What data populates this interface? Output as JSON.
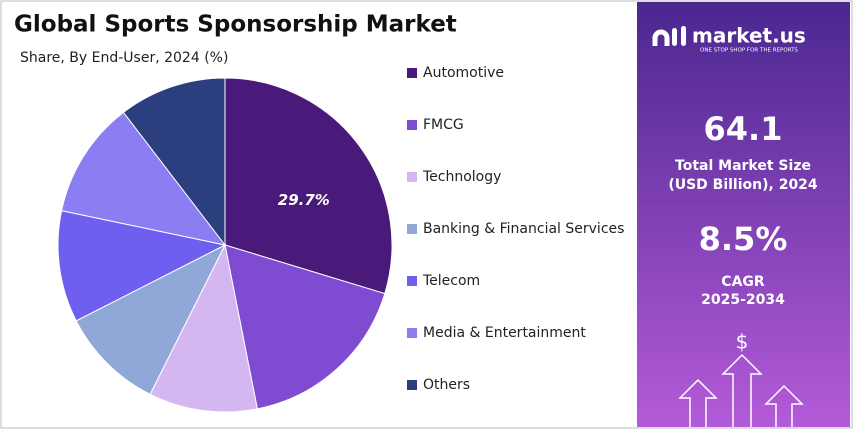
{
  "chart_data": {
    "type": "pie",
    "title": "Global Sports Sponsorship Market",
    "subtitle": "Share, By End-User, 2024 (%)",
    "categories": [
      "Automotive",
      "FMCG",
      "Technology",
      "Banking & Financial Services",
      "Telecom",
      "Media & Entertainment",
      "Others"
    ],
    "values": [
      29.7,
      17.2,
      10.5,
      10.1,
      10.8,
      11.3,
      10.4
    ],
    "value_labels": [
      "29.7%",
      null,
      null,
      null,
      null,
      null,
      null
    ],
    "colors": [
      "#4a1a7a",
      "#7e4bd1",
      "#d4b6f0",
      "#8fa8d8",
      "#6f5ff0",
      "#8a7ef2",
      "#2b3f7e"
    ],
    "legend": "right"
  },
  "panel": {
    "brand": "market.us",
    "tagline": "ONE STOP SHOP FOR THE REPORTS",
    "market_size": "64.1",
    "market_size_label": [
      "Total Market Size",
      "(USD Billion), 2024"
    ],
    "cagr": "8.5%",
    "cagr_label": [
      "CAGR",
      "2025-2034"
    ]
  }
}
